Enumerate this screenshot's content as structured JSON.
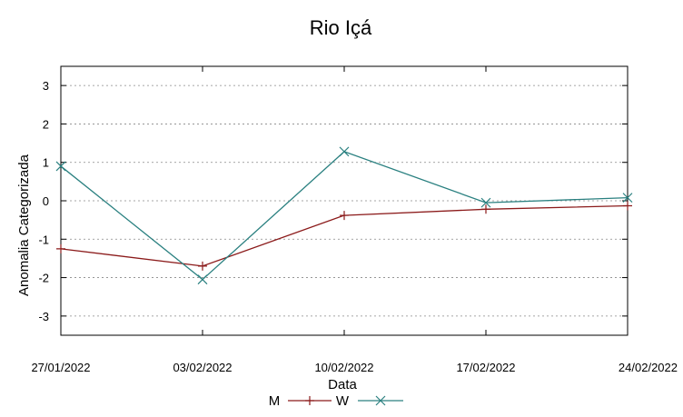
{
  "chart_data": {
    "type": "line",
    "title": "Rio Içá",
    "xlabel": "Data",
    "ylabel": "Anomalia Categorizada",
    "categories": [
      "27/01/2022",
      "03/02/2022",
      "10/02/2022",
      "17/02/2022",
      "24/02/2022"
    ],
    "ylim": [
      -3.5,
      3.5
    ],
    "yticks": [
      "3",
      "2",
      "1",
      "0",
      "-1",
      "-2",
      "-3"
    ],
    "grid": "horizontal-dotted",
    "legend_position": "bottom-center",
    "series": [
      {
        "name": "M",
        "color": "#8b1a1a",
        "marker": "plus",
        "values": [
          -1.25,
          -1.7,
          -0.38,
          -0.22,
          -0.13
        ]
      },
      {
        "name": "W",
        "color": "#2a8080",
        "marker": "cross",
        "values": [
          0.9,
          -2.05,
          1.28,
          -0.05,
          0.08
        ]
      }
    ]
  }
}
